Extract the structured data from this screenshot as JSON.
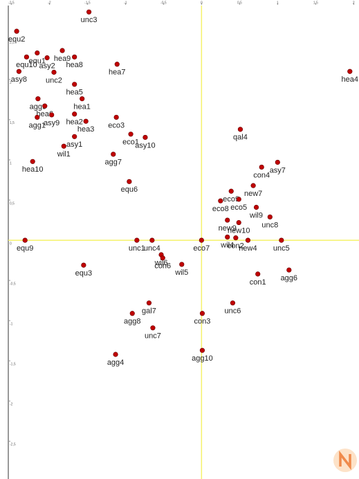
{
  "chart_data": {
    "type": "scatter",
    "color": "#c00000",
    "xlim": [
      -2.54,
      2.07
    ],
    "ylim": [
      -2.97,
      2.92
    ],
    "xticks": [
      {
        "value": -2.5,
        "label": "-2,5"
      },
      -2,
      {
        "value": -1.5,
        "label": "-1,5"
      },
      -1,
      {
        "value": -0.5,
        "label": "-0,5"
      },
      0,
      {
        "value": 0.5,
        "label": "0,5"
      },
      1,
      {
        "value": 1.5,
        "label": "1,5"
      },
      2
    ],
    "yticks": [
      {
        "value": 2.5,
        "label": "2,5"
      },
      2,
      {
        "value": 1.5,
        "label": "1,5"
      },
      1,
      {
        "value": 0.5,
        "label": "0,5"
      },
      0,
      {
        "value": -0.5,
        "label": "-0,5"
      },
      -1,
      {
        "value": -1.5,
        "label": "-1,5"
      },
      -2,
      {
        "value": -2.5,
        "label": "-2,5"
      }
    ],
    "point_labels": [
      "unc3",
      "equ2",
      "equ1",
      "hea9",
      "hea8",
      "asy2",
      "equ10",
      "unc2",
      "asy8",
      "hea7",
      "hea4",
      "hea5",
      "agg9",
      "hea6",
      "hea1",
      "hea2",
      "hea3",
      "agg1",
      "asy9",
      "eco3",
      "eco1",
      "asy10",
      "wil1",
      "asy1",
      "qal4",
      "agg7",
      "hea10",
      "asy7",
      "con4",
      "equ6",
      "new7",
      "eco8",
      "eco9",
      "eco5",
      "wil9",
      "unc8",
      "new9",
      "new10",
      "equ9",
      "unc1",
      "unc4",
      "wil6",
      "con6",
      "wil5",
      "eco7",
      "wil4",
      "con2",
      "new4",
      "unc5",
      "equ3",
      "con1",
      "agg6",
      "unc6",
      "con3",
      "gal7",
      "agg8",
      "unc7",
      "agg4",
      "agg10"
    ],
    "x": [
      -1.48,
      -2.43,
      -2.16,
      -1.83,
      -1.67,
      -2.03,
      -2.3,
      -1.94,
      -2.4,
      -1.11,
      1.95,
      -1.67,
      -2.15,
      -2.06,
      -1.57,
      -1.67,
      -1.52,
      -2.16,
      -1.97,
      -1.12,
      -0.93,
      -0.74,
      -1.81,
      -1.67,
      0.51,
      -1.16,
      -2.22,
      1.0,
      0.79,
      -0.95,
      0.68,
      0.25,
      0.39,
      0.49,
      0.72,
      0.9,
      0.34,
      0.49,
      -2.32,
      -0.85,
      -0.65,
      -0.53,
      -0.51,
      -0.26,
      0,
      0.34,
      0.45,
      0.61,
      1.05,
      -1.55,
      0.74,
      1.15,
      0.41,
      0.01,
      -0.69,
      -0.91,
      -0.64,
      -1.13,
      0.01
    ],
    "values": [
      2.84,
      2.6,
      2.33,
      2.36,
      2.28,
      2.27,
      2.28,
      2.09,
      2.1,
      2.19,
      2.1,
      1.94,
      1.76,
      1.67,
      1.76,
      1.57,
      1.48,
      1.53,
      1.56,
      1.53,
      1.32,
      1.28,
      1.17,
      1.29,
      1.38,
      1.07,
      0.98,
      0.97,
      0.91,
      0.73,
      0.68,
      0.49,
      0.61,
      0.51,
      0.41,
      0.29,
      0.25,
      0.22,
      0,
      0,
      0,
      -0.18,
      -0.22,
      -0.3,
      0,
      0.04,
      0.03,
      0,
      0,
      -0.31,
      -0.42,
      -0.37,
      -0.78,
      -0.91,
      -0.78,
      -0.91,
      -1.09,
      -1.42,
      -1.37
    ]
  }
}
